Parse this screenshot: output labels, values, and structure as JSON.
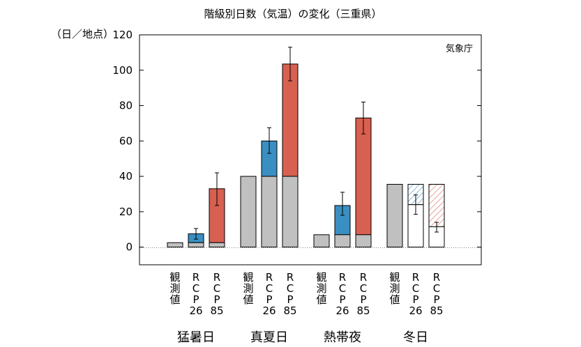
{
  "chart_data": {
    "type": "bar",
    "title": "階級別日数（気温）の変化（三重県）",
    "ylabel": "（日／地点）",
    "ylim": [
      -10,
      120
    ],
    "yticks": [
      0,
      20,
      40,
      60,
      80,
      100,
      120
    ],
    "source": "気象庁",
    "series_colors": {
      "observed": "#c0c0c0",
      "rcp26": "#3a8fc2",
      "rcp85": "#d86050",
      "border": "#000000"
    },
    "bar_labels": {
      "observed": [
        "観",
        "測",
        "値"
      ],
      "rcp26": [
        "R",
        "C",
        "P",
        "26"
      ],
      "rcp85": [
        "R",
        "C",
        "P",
        "85"
      ]
    },
    "groups": [
      {
        "name": "猛暑日",
        "bars": [
          {
            "kind": "observed",
            "base": 2.5
          },
          {
            "kind": "rcp26",
            "base": 2.5,
            "total": 7.5,
            "err": [
              4.5,
              10.5
            ]
          },
          {
            "kind": "rcp85",
            "base": 2.5,
            "total": 33,
            "err": [
              23.5,
              42
            ]
          }
        ]
      },
      {
        "name": "真夏日",
        "bars": [
          {
            "kind": "observed",
            "base": 40
          },
          {
            "kind": "rcp26",
            "base": 40,
            "total": 60,
            "err": [
              53,
              67.5
            ]
          },
          {
            "kind": "rcp85",
            "base": 40,
            "total": 103.5,
            "err": [
              94,
              113
            ]
          }
        ]
      },
      {
        "name": "熱帯夜",
        "bars": [
          {
            "kind": "observed",
            "base": 7
          },
          {
            "kind": "rcp26",
            "base": 7,
            "total": 23.5,
            "err": [
              18,
              31
            ]
          },
          {
            "kind": "rcp85",
            "base": 7,
            "total": 73,
            "err": [
              64,
              82
            ]
          }
        ]
      },
      {
        "name": "冬日",
        "bars": [
          {
            "kind": "observed",
            "base": 35.5
          },
          {
            "kind": "rcp26",
            "base": 35.5,
            "total": 24,
            "err": [
              18.5,
              29.5
            ],
            "decrease": true
          },
          {
            "kind": "rcp85",
            "base": 35.5,
            "total": 11.5,
            "err": [
              8.5,
              14
            ],
            "decrease": true
          }
        ]
      }
    ]
  }
}
